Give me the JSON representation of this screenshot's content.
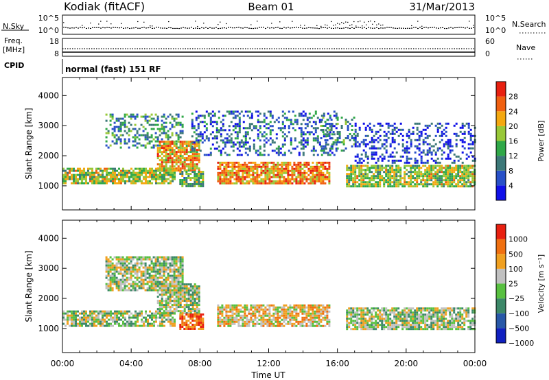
{
  "header": {
    "station": "Kodiak (fitACF)",
    "beam": "Beam 01",
    "date": "31/Mar/2013"
  },
  "strip": {
    "nsky_label": "N.Sky",
    "nsearch_label": "N.Search",
    "noise_ticks_left": [
      "10^5",
      "10^0"
    ],
    "noise_ticks_right": [
      "10^5",
      "10^0"
    ],
    "freq_label": "Freq.",
    "freq_unit": "[MHz]",
    "freq_ticks": [
      "18",
      "8"
    ],
    "nave_label": "Nave",
    "nave_ticks": [
      "60",
      "0"
    ],
    "cpid_label": "CPID",
    "cpid_text": "normal (fast) 151 RF"
  },
  "chart_data": [
    {
      "type": "heatmap",
      "name": "power",
      "ylabel": "Slant Range [km]",
      "yticks": [
        1000,
        2000,
        3000,
        4000
      ],
      "ylim": [
        200,
        4600
      ],
      "xlim_hours": [
        0,
        24
      ],
      "colorbar": {
        "label": "Power [dB]",
        "ticks": [
          "4",
          "8",
          "12",
          "16",
          "20",
          "24",
          "28"
        ],
        "colors": [
          "#1010e8",
          "#2850c8",
          "#3c7878",
          "#30a848",
          "#98c838",
          "#f4a810",
          "#f06010",
          "#e82010"
        ]
      },
      "regions": [
        {
          "t0": 0,
          "t1": 6.5,
          "r0": 1100,
          "r1": 1600,
          "level": 0.55
        },
        {
          "t0": 2.5,
          "t1": 7.0,
          "r0": 2300,
          "r1": 3400,
          "level": 0.35
        },
        {
          "t0": 5.5,
          "t1": 8.0,
          "r0": 1500,
          "r1": 2500,
          "level": 0.7
        },
        {
          "t0": 6.8,
          "t1": 8.2,
          "r0": 1000,
          "r1": 1500,
          "level": 0.45
        },
        {
          "t0": 7.5,
          "t1": 16.0,
          "r0": 2000,
          "r1": 3500,
          "level": 0.25
        },
        {
          "t0": 9.0,
          "t1": 15.5,
          "r0": 1100,
          "r1": 1800,
          "level": 0.75
        },
        {
          "t0": 15.0,
          "t1": 17.0,
          "r0": 2200,
          "r1": 3300,
          "level": 0.35
        },
        {
          "t0": 16.5,
          "t1": 24,
          "r0": 1000,
          "r1": 1700,
          "level": 0.55
        },
        {
          "t0": 17.0,
          "t1": 24,
          "r0": 1800,
          "r1": 3100,
          "level": 0.15
        }
      ]
    },
    {
      "type": "heatmap",
      "name": "velocity",
      "xlabel": "Time UT",
      "ylabel": "Slant Range [km]",
      "yticks": [
        1000,
        2000,
        3000,
        4000
      ],
      "ylim": [
        200,
        4600
      ],
      "xlim_hours": [
        0,
        24
      ],
      "xticks": [
        "00:00",
        "04:00",
        "08:00",
        "12:00",
        "16:00",
        "20:00",
        "00:00"
      ],
      "colorbar": {
        "label": "Velocity [m s⁻¹]",
        "ticks": [
          "1000",
          "500",
          "100",
          "25",
          "−25",
          "−100",
          "−500",
          "−1000"
        ],
        "colors": [
          "#1020c0",
          "#2858a8",
          "#3c8868",
          "#58c040",
          "#c0c0c0",
          "#f0a020",
          "#f07010",
          "#e82010"
        ]
      },
      "regions": [
        {
          "t0": 0,
          "t1": 6.5,
          "r0": 1100,
          "r1": 1600,
          "level": 0.5
        },
        {
          "t0": 5.5,
          "t1": 8.0,
          "r0": 1500,
          "r1": 2500,
          "level": 0.5
        },
        {
          "t0": 6.8,
          "t1": 8.2,
          "r0": 1000,
          "r1": 1500,
          "level": 0.85
        },
        {
          "t0": 9.0,
          "t1": 15.5,
          "r0": 1100,
          "r1": 1800,
          "level": 0.62
        },
        {
          "t0": 16.5,
          "t1": 24,
          "r0": 1000,
          "r1": 1700,
          "level": 0.5
        },
        {
          "t0": 2.5,
          "t1": 7.0,
          "r0": 2300,
          "r1": 3400,
          "level": 0.5
        }
      ]
    }
  ]
}
